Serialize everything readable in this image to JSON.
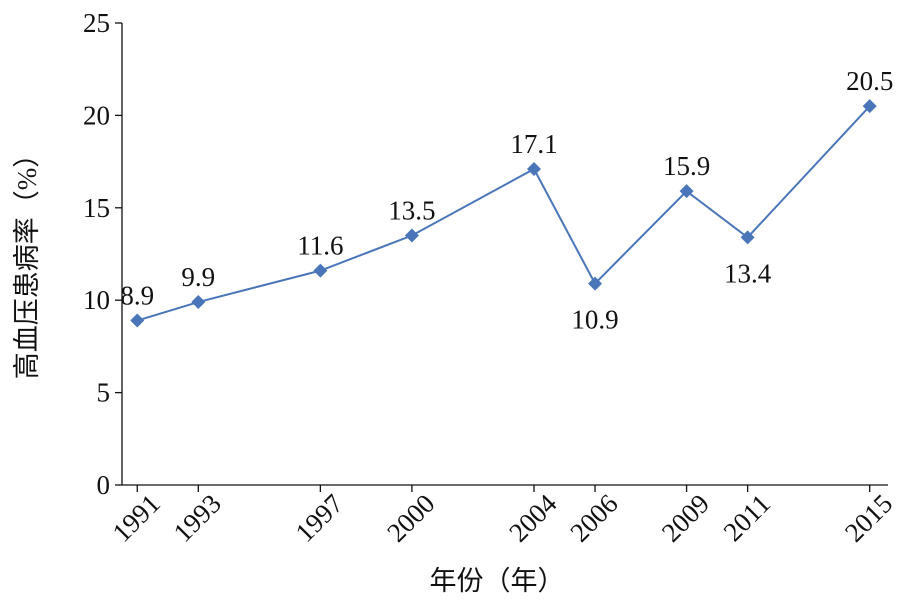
{
  "chart_data": {
    "type": "line",
    "x_label": "年份（年）",
    "y_label": "高血压患病率（%）",
    "x": [
      1991,
      1993,
      1997,
      2000,
      2004,
      2006,
      2009,
      2011,
      2015
    ],
    "series": [
      {
        "color": "#4a76b9",
        "values": [
          8.9,
          9.9,
          11.6,
          13.5,
          17.1,
          10.9,
          15.9,
          13.4,
          20.5
        ]
      }
    ],
    "xlim": [
      1990.5,
      2015.6
    ],
    "xticks": [
      1991,
      1993,
      1997,
      2000,
      2004,
      2006,
      2009,
      2011,
      2015
    ],
    "ylim": [
      0,
      25
    ],
    "yticks": [
      0,
      5,
      10,
      15,
      20,
      25
    ]
  }
}
